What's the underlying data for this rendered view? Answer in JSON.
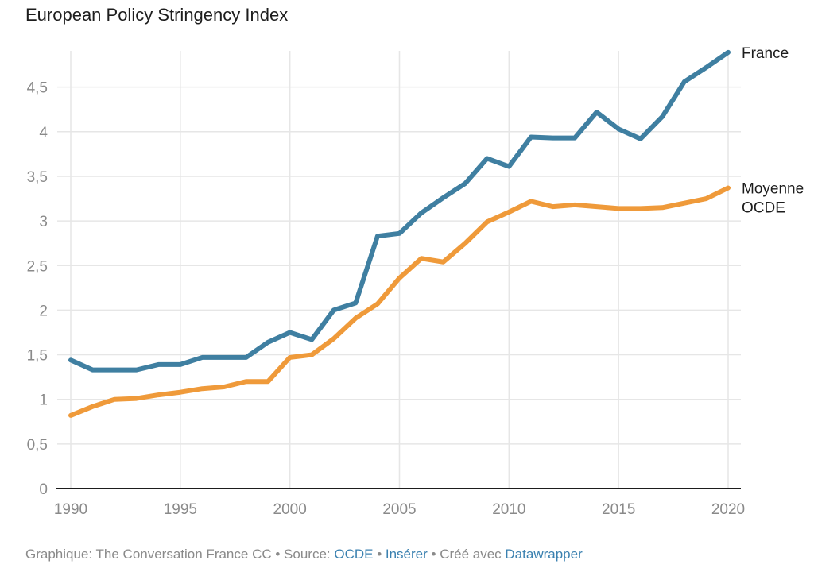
{
  "footer": {
    "prefix": "Graphique: The Conversation France CC",
    "sep": " • ",
    "source_label": "Source: ",
    "source_link": "OCDE",
    "embed_link": "Insérer",
    "created_label": "Créé avec ",
    "tool_link": "Datawrapper",
    "link_color": "#3b81b0"
  },
  "chart_data": {
    "type": "line",
    "title": "European Policy Stringency Index",
    "xlabel": "",
    "ylabel": "",
    "xlim": [
      1990,
      2020
    ],
    "ylim": [
      0,
      4.9
    ],
    "grid": true,
    "legend": "direct-labels-right",
    "x_ticks": [
      1990,
      1995,
      2000,
      2005,
      2010,
      2015,
      2020
    ],
    "x_tick_labels": [
      "1990",
      "1995",
      "2000",
      "2005",
      "2010",
      "2015",
      "2020"
    ],
    "y_ticks": [
      0,
      0.5,
      1,
      1.5,
      2,
      2.5,
      3,
      3.5,
      4,
      4.5
    ],
    "y_tick_labels": [
      "0",
      "0,5",
      "1",
      "1,5",
      "2",
      "2,5",
      "3",
      "3,5",
      "4",
      "4,5"
    ],
    "x": [
      1990,
      1991,
      1992,
      1993,
      1994,
      1995,
      1996,
      1997,
      1998,
      1999,
      2000,
      2001,
      2002,
      2003,
      2004,
      2005,
      2006,
      2007,
      2008,
      2009,
      2010,
      2011,
      2012,
      2013,
      2014,
      2015,
      2016,
      2017,
      2018,
      2019,
      2020
    ],
    "series": [
      {
        "name": "France",
        "label_lines": [
          "France"
        ],
        "color": "#3f7fa1",
        "values": [
          1.44,
          1.33,
          1.33,
          1.33,
          1.39,
          1.39,
          1.47,
          1.47,
          1.47,
          1.64,
          1.75,
          1.67,
          2.0,
          2.08,
          2.83,
          2.86,
          3.09,
          3.26,
          3.42,
          3.7,
          3.61,
          3.94,
          3.93,
          3.93,
          4.22,
          4.03,
          3.92,
          4.17,
          4.56,
          4.72,
          4.89
        ]
      },
      {
        "name": "Moyenne OCDE",
        "label_lines": [
          "Moyenne",
          "OCDE"
        ],
        "color": "#ef9a3a",
        "values": [
          0.82,
          0.92,
          1.0,
          1.01,
          1.05,
          1.08,
          1.12,
          1.14,
          1.2,
          1.2,
          1.47,
          1.5,
          1.68,
          1.91,
          2.07,
          2.36,
          2.58,
          2.54,
          2.75,
          2.99,
          3.1,
          3.22,
          3.16,
          3.18,
          3.16,
          3.14,
          3.14,
          3.15,
          3.2,
          3.25,
          3.37
        ]
      }
    ]
  }
}
